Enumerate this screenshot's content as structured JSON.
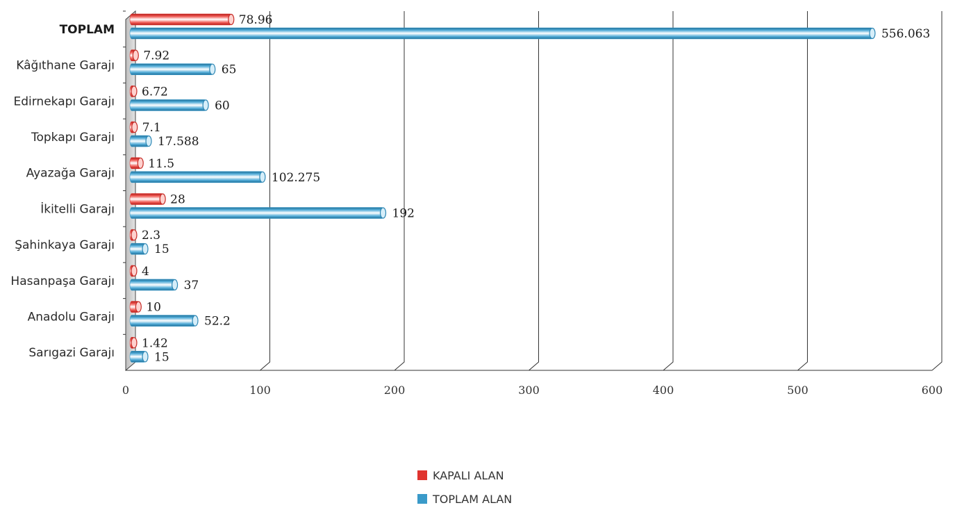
{
  "chart_data": {
    "type": "bar",
    "orientation": "horizontal",
    "title": "",
    "xlabel": "",
    "ylabel": "",
    "xlim": [
      0,
      600
    ],
    "x_ticks": [
      "0",
      "100",
      "200",
      "300",
      "400",
      "500",
      "600"
    ],
    "grid": true,
    "legend_position": "bottom-center",
    "categories": [
      "TOPLAM",
      "Kâğıthane Garajı",
      "Edirnekapı Garajı",
      "Topkapı Garajı",
      "Ayazağa Garajı",
      "İkitelli Garajı",
      "Şahinkaya Garajı",
      "Hasanpaşa Garajı",
      "Anadolu Garajı",
      "Sarıgazi Garajı"
    ],
    "series": [
      {
        "name": "KAPALI ALAN",
        "color": "#e0342f",
        "values": [
          78.96,
          7.92,
          6.72,
          7.1,
          11.5,
          28,
          2.3,
          4,
          10,
          1.42
        ],
        "labels": [
          "78.96",
          "7.92",
          "6.72",
          "7.1",
          "11.5",
          "28",
          "2.3",
          "4",
          "10",
          "1.42"
        ]
      },
      {
        "name": "TOPLAM ALAN",
        "color": "#3a9ac9",
        "values": [
          556.063,
          65,
          60,
          17.588,
          102.275,
          192,
          15,
          37,
          52.2,
          15
        ],
        "labels": [
          "556.063",
          "65",
          "60",
          "17.588",
          "102.275",
          "192",
          "15",
          "37",
          "52.2",
          "15"
        ]
      }
    ]
  }
}
